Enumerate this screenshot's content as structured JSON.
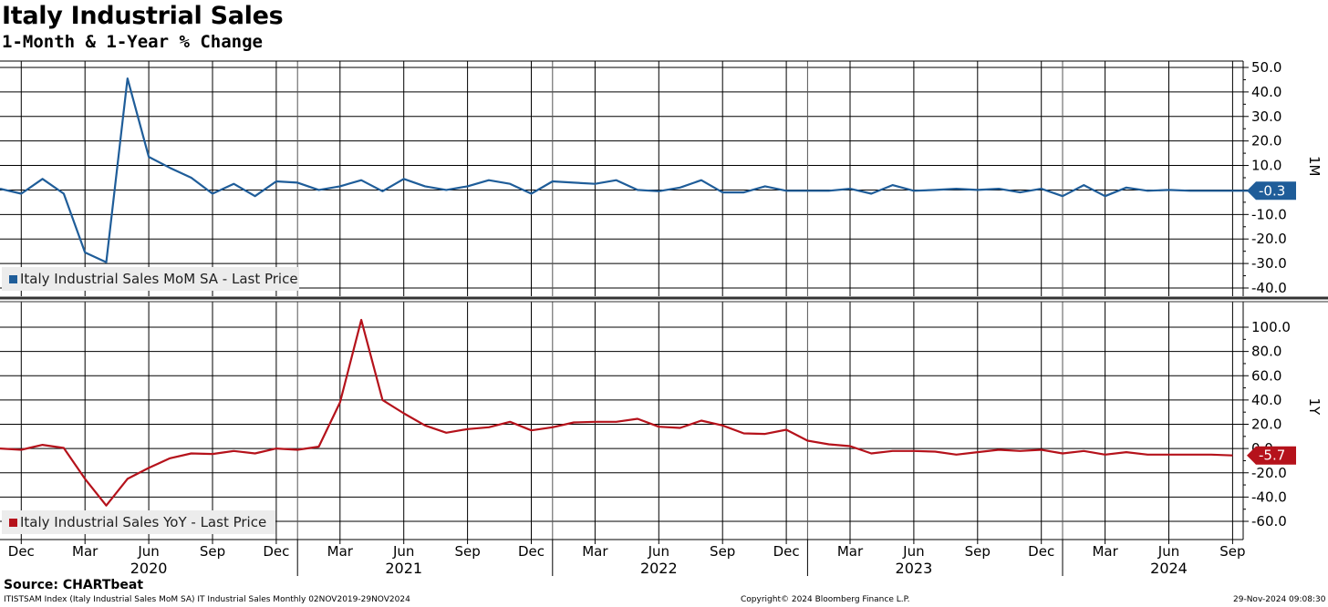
{
  "title": "Italy Industrial Sales",
  "subtitle": "1-Month & 1-Year % Change",
  "source": "Source: CHARTbeat",
  "footer_left": "ITISTSAM Index (Italy Industrial Sales MoM SA) IT Industrial Sales  Monthly 02NOV2019-29NOV2024",
  "footer_center": "Copyright© 2024 Bloomberg Finance L.P.",
  "footer_right": "29-Nov-2024 09:08:30",
  "chart_data": [
    {
      "type": "line",
      "panel_label": "1M",
      "x_start": "2019-11",
      "series": [
        {
          "name": "Italy Industrial Sales MoM SA - Last Price",
          "color": "#1f5d99",
          "last_value_label": "-0.3",
          "values": [
            0.5,
            -1.5,
            4.5,
            -1.5,
            -25.5,
            -29.5,
            45.5,
            13.5,
            9,
            5,
            -1.5,
            2.5,
            -2.5,
            3.5,
            3,
            0,
            1.5,
            4,
            -0.5,
            4.5,
            1.5,
            0,
            1.5,
            4,
            2.5,
            -1.5,
            3.5,
            3,
            2.5,
            4,
            0,
            -0.5,
            1,
            4,
            -1,
            -1,
            1.5,
            -0.3,
            -0.3,
            -0.3,
            0.5,
            -1.5,
            2,
            -0.3,
            0,
            0.5,
            0,
            0.5,
            -1,
            0.5,
            -2.5,
            2,
            -2.5,
            1,
            -0.3,
            0,
            -0.3,
            -0.3,
            -0.3,
            -0.3,
            -0.3
          ]
        }
      ],
      "ylim": [
        -40,
        50
      ],
      "yticks": [
        "50.0",
        "40.0",
        "30.0",
        "20.0",
        "10.0",
        "0.0",
        "-10.0",
        "-20.0",
        "-30.0",
        "-40.0"
      ],
      "ytick_values": [
        50,
        40,
        30,
        20,
        10,
        0,
        -10,
        -20,
        -30,
        -40
      ],
      "grid": true,
      "legend_position": "bottom-left"
    },
    {
      "type": "line",
      "panel_label": "1Y",
      "x_start": "2019-11",
      "series": [
        {
          "name": "Italy Industrial Sales YoY - Last Price",
          "color": "#b5121b",
          "last_value_label": "-5.7",
          "values": [
            0,
            -1,
            3,
            0.5,
            -25,
            -47,
            -25,
            -16,
            -8,
            -4,
            -4.5,
            -2,
            -4,
            0,
            -1,
            1.5,
            38,
            106,
            40,
            29,
            19,
            13,
            16,
            17.5,
            22,
            15,
            17.5,
            21.5,
            22,
            22,
            24.5,
            18,
            17,
            23,
            19,
            12.5,
            12,
            15.5,
            6.5,
            3.5,
            2,
            -4,
            -2,
            -2,
            -2.5,
            -5,
            -3,
            -1,
            -2,
            -1,
            -4,
            -2,
            -5,
            -3,
            -5,
            -5,
            -5,
            -5,
            -5.7
          ]
        }
      ],
      "ylim": [
        -70,
        115
      ],
      "yticks": [
        "100.0",
        "80.0",
        "60.0",
        "40.0",
        "20.0",
        "0.0",
        "-20.0",
        "-40.0",
        "-60.0"
      ],
      "ytick_values": [
        100,
        80,
        60,
        40,
        20,
        0,
        -20,
        -40,
        -60
      ],
      "grid": true,
      "legend_position": "bottom-left"
    }
  ],
  "x_axis": {
    "month_labels": [
      "Dec",
      "Mar",
      "Jun",
      "Sep",
      "Dec",
      "Mar",
      "Jun",
      "Sep",
      "Dec",
      "Mar",
      "Jun",
      "Sep",
      "Dec",
      "Mar",
      "Jun",
      "Sep",
      "Dec",
      "Mar",
      "Jun",
      "Sep"
    ],
    "month_index": [
      1,
      4,
      7,
      10,
      13,
      16,
      19,
      22,
      25,
      28,
      31,
      34,
      37,
      40,
      43,
      46,
      49,
      52,
      55,
      58
    ],
    "year_labels": [
      "2020",
      "2021",
      "2022",
      "2023",
      "2024"
    ],
    "year_index": [
      7,
      19,
      31,
      43,
      55
    ],
    "year_boundary_index": [
      14,
      26,
      38,
      50
    ]
  }
}
